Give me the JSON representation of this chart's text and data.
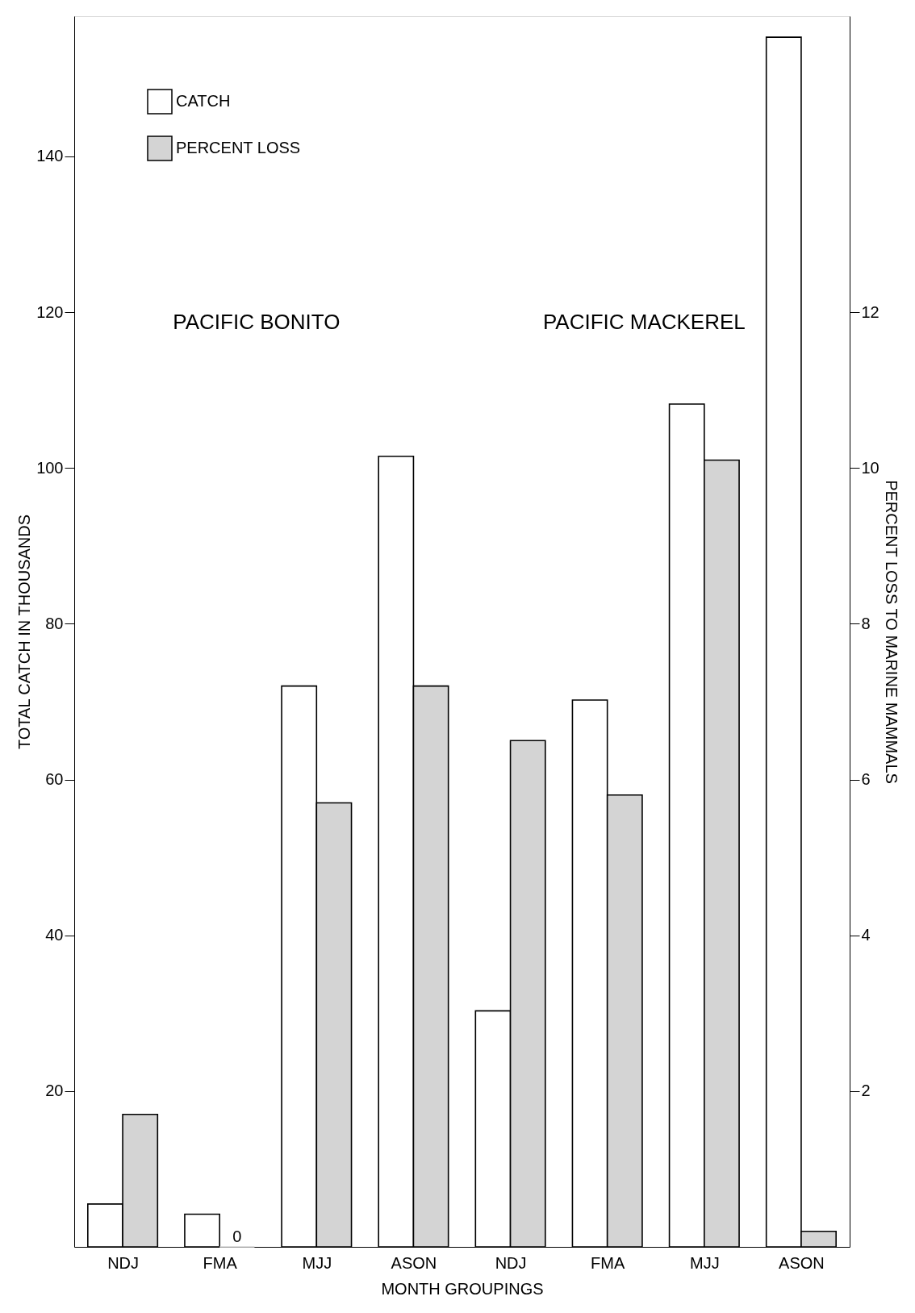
{
  "chart_data": {
    "type": "bar",
    "xlabel": "MONTH GROUPINGS",
    "ylabel": "TOTAL CATCH IN THOUSANDS",
    "y2label": "PERCENT LOSS TO MARINE MAMMALS",
    "categories": [
      "NDJ",
      "FMA",
      "MJJ",
      "ASON",
      "NDJ",
      "FMA",
      "MJJ",
      "ASON"
    ],
    "series": [
      {
        "name": "CATCH",
        "color": "#ffffff",
        "values": [
          5.5,
          4.2,
          72,
          101.5,
          30.3,
          70.2,
          108.2,
          155.3
        ]
      },
      {
        "name": "PERCENT LOSS",
        "color": "#d4d4d4",
        "axis": "y2",
        "values": [
          1.7,
          0,
          5.7,
          7.2,
          6.5,
          5.8,
          10.1,
          0.2
        ],
        "value_labels": [
          null,
          "0",
          null,
          null,
          null,
          null,
          null,
          null
        ]
      }
    ],
    "ylim": [
      0,
      158
    ],
    "yticks": [
      20,
      40,
      60,
      80,
      100,
      120,
      140
    ],
    "y2lim": [
      0,
      15.8
    ],
    "y2ticks": [
      2,
      4,
      6,
      8,
      10,
      12
    ],
    "annotations": [
      "PACIFIC BONITO",
      "PACIFIC MACKEREL"
    ],
    "legend": "top left",
    "grid": false
  }
}
